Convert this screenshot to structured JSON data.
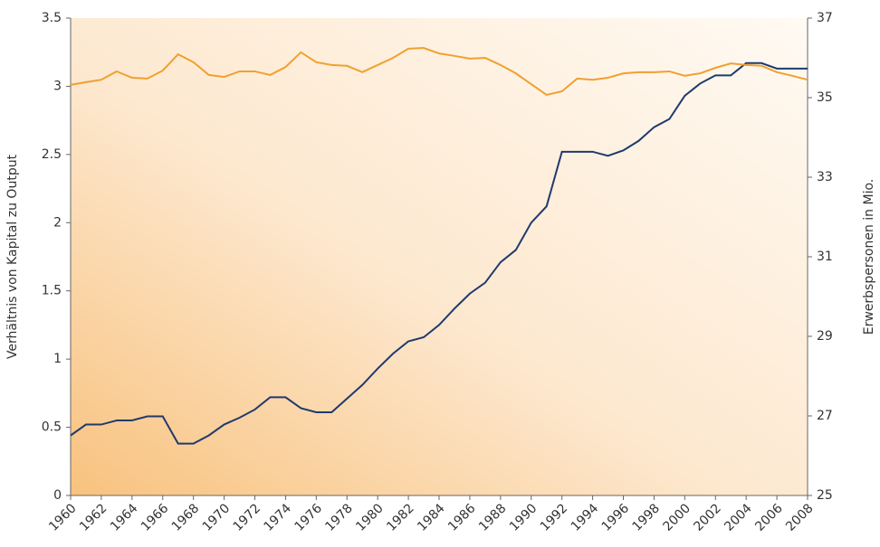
{
  "chart_data": {
    "type": "line",
    "y_label": "Verhältnis von Kapital zu Output",
    "y2_label": "Erwerbspersonen in Mio.",
    "x": [
      1960,
      1961,
      1962,
      1963,
      1964,
      1965,
      1966,
      1967,
      1968,
      1969,
      1970,
      1971,
      1972,
      1973,
      1974,
      1975,
      1976,
      1977,
      1978,
      1979,
      1980,
      1981,
      1982,
      1983,
      1984,
      1985,
      1986,
      1987,
      1988,
      1989,
      1990,
      1991,
      1992,
      1993,
      1994,
      1995,
      1996,
      1997,
      1998,
      1999,
      2000,
      2001,
      2002,
      2003,
      2004,
      2005,
      2006,
      2007,
      2008
    ],
    "xlim": [
      1960,
      2008
    ],
    "xticks": [
      1960,
      1962,
      1964,
      1966,
      1968,
      1970,
      1972,
      1974,
      1976,
      1978,
      1980,
      1982,
      1984,
      1986,
      1988,
      1990,
      1992,
      1994,
      1996,
      1998,
      2000,
      2002,
      2004,
      2006,
      2008
    ],
    "ylim": [
      0,
      3.5
    ],
    "yticks": [
      0,
      0.5,
      1,
      1.5,
      2,
      2.5,
      3,
      3.5
    ],
    "y2lim": [
      25,
      37
    ],
    "y2ticks": [
      25,
      27,
      29,
      31,
      33,
      35,
      37
    ],
    "series": [
      {
        "color": "#1f3a6e",
        "values": [
          0.44,
          0.52,
          0.52,
          0.55,
          0.55,
          0.58,
          0.58,
          0.38,
          0.38,
          0.44,
          0.52,
          0.57,
          0.63,
          0.72,
          0.72,
          0.64,
          0.61,
          0.61,
          0.71,
          0.81,
          0.93,
          1.04,
          1.13,
          1.16,
          1.25,
          1.37,
          1.48,
          1.56,
          1.71,
          1.8,
          2.0,
          2.12,
          2.52,
          2.52,
          2.52,
          2.49,
          2.53,
          2.6,
          2.7,
          2.76,
          2.93,
          3.02,
          3.08,
          3.08,
          3.17,
          3.17,
          3.13,
          3.13,
          3.13
        ]
      },
      {
        "color": "#f0a030",
        "axis": "y2",
        "values": [
          35.32,
          35.39,
          35.45,
          35.66,
          35.5,
          35.48,
          35.68,
          36.09,
          35.89,
          35.57,
          35.52,
          35.66,
          35.66,
          35.57,
          35.77,
          36.14,
          35.89,
          35.82,
          35.8,
          35.64,
          35.82,
          36.0,
          36.23,
          36.25,
          36.11,
          36.05,
          35.98,
          36.0,
          35.82,
          35.61,
          35.34,
          35.07,
          35.16,
          35.48,
          35.45,
          35.5,
          35.61,
          35.64,
          35.64,
          35.66,
          35.55,
          35.61,
          35.75,
          35.86,
          35.82,
          35.8,
          35.64,
          35.55,
          35.45
        ]
      }
    ]
  }
}
